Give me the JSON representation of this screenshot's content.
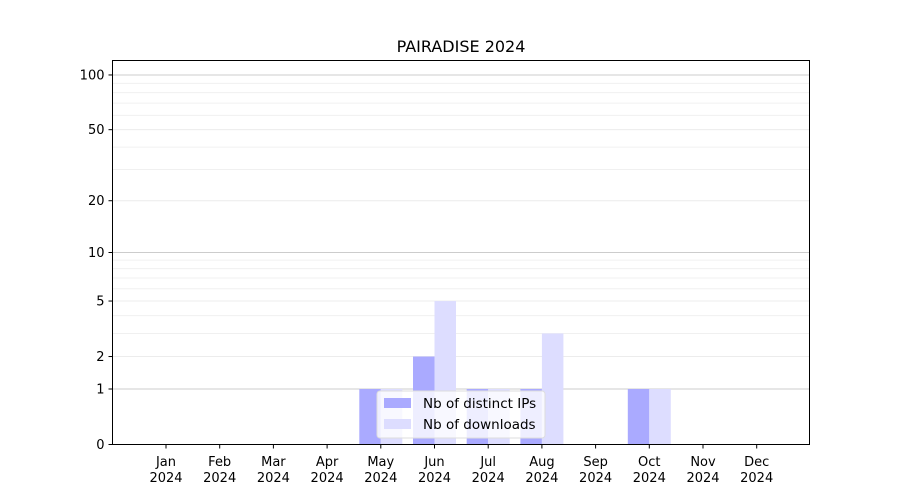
{
  "chart_data": {
    "type": "bar",
    "title": "PAIRADISE 2024",
    "scale": "log1p",
    "categories": [
      {
        "month": "Jan",
        "year": "2024"
      },
      {
        "month": "Feb",
        "year": "2024"
      },
      {
        "month": "Mar",
        "year": "2024"
      },
      {
        "month": "Apr",
        "year": "2024"
      },
      {
        "month": "May",
        "year": "2024"
      },
      {
        "month": "Jun",
        "year": "2024"
      },
      {
        "month": "Jul",
        "year": "2024"
      },
      {
        "month": "Aug",
        "year": "2024"
      },
      {
        "month": "Sep",
        "year": "2024"
      },
      {
        "month": "Oct",
        "year": "2024"
      },
      {
        "month": "Nov",
        "year": "2024"
      },
      {
        "month": "Dec",
        "year": "2024"
      }
    ],
    "series": [
      {
        "name": "Nb of distinct IPs",
        "color": "#aaaaff",
        "values": [
          0,
          0,
          0,
          0,
          1,
          2,
          1,
          1,
          0,
          1,
          0,
          0
        ]
      },
      {
        "name": "Nb of downloads",
        "color": "#ddddff",
        "values": [
          0,
          0,
          0,
          0,
          1,
          5,
          1,
          3,
          0,
          1,
          0,
          0
        ]
      }
    ],
    "yticks": [
      "0",
      "1",
      "2",
      "5",
      "10",
      "20",
      "50",
      "100"
    ],
    "ylim": [
      0,
      120
    ],
    "legend_position": "lower-center",
    "grid": true
  }
}
